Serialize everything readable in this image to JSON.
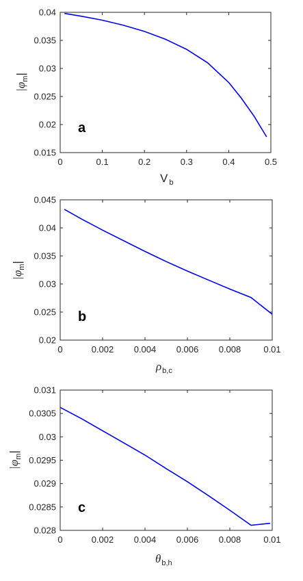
{
  "colors": {
    "series": "#0000ee",
    "axes": "#262626"
  },
  "chart_data": [
    {
      "type": "line",
      "panel_label": "a",
      "xlabel": {
        "main": "V",
        "sub": "b"
      },
      "ylabel": {
        "main": "|φ",
        "sub": "m",
        "close": "|"
      },
      "xlim": [
        0,
        0.5
      ],
      "ylim": [
        0.015,
        0.04
      ],
      "xticks": [
        0,
        0.1,
        0.2,
        0.3,
        0.4,
        0.5
      ],
      "xtick_labels": [
        "0",
        "0.1",
        "0.2",
        "0.3",
        "0.4",
        "0.5"
      ],
      "yticks": [
        0.015,
        0.02,
        0.025,
        0.03,
        0.035,
        0.04
      ],
      "ytick_labels": [
        "0.015",
        "0.02",
        "0.025",
        "0.03",
        "0.035",
        "0.04"
      ],
      "series": [
        {
          "x": [
            0.01,
            0.05,
            0.1,
            0.15,
            0.2,
            0.25,
            0.3,
            0.35,
            0.4,
            0.43,
            0.46,
            0.49
          ],
          "y": [
            0.0398,
            0.0393,
            0.0386,
            0.0377,
            0.0366,
            0.0352,
            0.0334,
            0.031,
            0.0275,
            0.0247,
            0.0215,
            0.0178
          ]
        }
      ]
    },
    {
      "type": "line",
      "panel_label": "b",
      "xlabel": {
        "main": "ρ",
        "sub": "b,c"
      },
      "ylabel": {
        "main": "|φ",
        "sub": "m",
        "close": "|"
      },
      "xlim": [
        0,
        0.01
      ],
      "ylim": [
        0.02,
        0.045
      ],
      "xticks": [
        0,
        0.002,
        0.004,
        0.006,
        0.008,
        0.01
      ],
      "xtick_labels": [
        "0",
        "0.002",
        "0.004",
        "0.006",
        "0.008",
        "0.01"
      ],
      "yticks": [
        0.02,
        0.025,
        0.03,
        0.035,
        0.04,
        0.045
      ],
      "ytick_labels": [
        "0.02",
        "0.025",
        "0.03",
        "0.035",
        "0.04",
        "0.045"
      ],
      "series": [
        {
          "x": [
            0.0002,
            0.001,
            0.002,
            0.003,
            0.004,
            0.005,
            0.006,
            0.007,
            0.008,
            0.009,
            0.01
          ],
          "y": [
            0.0433,
            0.0416,
            0.0396,
            0.0377,
            0.0358,
            0.034,
            0.0323,
            0.0307,
            0.0291,
            0.0276,
            0.0246
          ]
        }
      ]
    },
    {
      "type": "line",
      "panel_label": "c",
      "xlabel": {
        "main": "θ",
        "sub": "b,h"
      },
      "ylabel": {
        "main": "|φ",
        "sub": "m",
        "close": "|"
      },
      "xlim": [
        0,
        0.01
      ],
      "ylim": [
        0.028,
        0.031
      ],
      "xticks": [
        0,
        0.002,
        0.004,
        0.006,
        0.008,
        0.01
      ],
      "xtick_labels": [
        "0",
        "0.002",
        "0.004",
        "0.006",
        "0.008",
        "0.01"
      ],
      "yticks": [
        0.028,
        0.0285,
        0.029,
        0.0295,
        0.03,
        0.0305,
        0.031
      ],
      "ytick_labels": [
        "0.028",
        "0.0285",
        "0.029",
        "0.0295",
        "0.03",
        "0.0305",
        "0.031"
      ],
      "series": [
        {
          "x": [
            0,
            0.001,
            0.002,
            0.003,
            0.004,
            0.005,
            0.006,
            0.007,
            0.008,
            0.009,
            0.0099
          ],
          "y": [
            0.03063,
            0.03039,
            0.03013,
            0.02987,
            0.02961,
            0.02932,
            0.02904,
            0.02874,
            0.02843,
            0.02811,
            0.02815
          ]
        }
      ]
    }
  ]
}
